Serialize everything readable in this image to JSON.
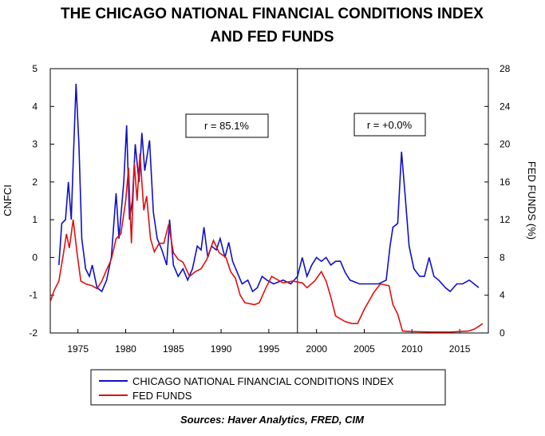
{
  "chart_data": {
    "type": "line",
    "title": [
      "THE CHICAGO NATIONAL FINANCIAL CONDITIONS INDEX",
      "AND FED FUNDS"
    ],
    "ylabel": "CNFCI",
    "y2label": "FED FUNDS (%)",
    "source": "Sources:  Haver Analytics, FRED, CIM",
    "annotations": [
      "r = 85.1%",
      "r = +0.0%"
    ],
    "vline": 1998,
    "xlim": [
      1972.1,
      2018
    ],
    "xticks": [
      1975,
      1980,
      1985,
      1990,
      1995,
      2000,
      2005,
      2010,
      2015
    ],
    "ylim": [
      -2,
      5
    ],
    "yticks": [
      -2,
      -1,
      0,
      1,
      2,
      3,
      4,
      5
    ],
    "y2lim": [
      0,
      28
    ],
    "y2ticks": [
      0,
      4,
      8,
      12,
      16,
      20,
      24,
      28
    ],
    "legend": "bottom",
    "series": [
      {
        "name": "CHICAGO NATIONAL FINANCIAL CONDITIONS INDEX",
        "color": "#1010c8",
        "axis": "y",
        "x": [
          1973.0,
          1973.3,
          1973.7,
          1974.0,
          1974.3,
          1974.5,
          1974.8,
          1975.1,
          1975.4,
          1975.8,
          1976.2,
          1976.5,
          1977.0,
          1977.5,
          1978.0,
          1978.5,
          1979.0,
          1979.3,
          1979.8,
          1980.1,
          1980.4,
          1980.7,
          1981.0,
          1981.4,
          1981.7,
          1982.0,
          1982.5,
          1982.9,
          1983.3,
          1983.8,
          1984.3,
          1984.6,
          1985.0,
          1985.5,
          1986.0,
          1986.5,
          1987.0,
          1987.5,
          1987.9,
          1988.2,
          1988.6,
          1989.0,
          1989.5,
          1989.9,
          1990.4,
          1990.8,
          1991.2,
          1991.7,
          1992.2,
          1992.8,
          1993.3,
          1993.8,
          1994.3,
          1994.8,
          1995.5,
          1996.5,
          1997.3,
          1998.0,
          1998.5,
          1999.0,
          1999.5,
          2000.0,
          2000.5,
          2001.0,
          2001.5,
          2002.0,
          2002.5,
          2003.0,
          2003.5,
          2004.5,
          2005.5,
          2006.5,
          2007.3,
          2007.7,
          2008.0,
          2008.5,
          2008.9,
          2009.3,
          2009.7,
          2010.2,
          2010.8,
          2011.3,
          2011.8,
          2012.3,
          2012.8,
          2013.5,
          2014.0,
          2014.7,
          2015.3,
          2016.0,
          2016.5,
          2017.0
        ],
        "values": [
          -0.2,
          0.9,
          1.0,
          2.0,
          1.0,
          2.5,
          4.6,
          3.0,
          0.5,
          -0.3,
          -0.5,
          -0.2,
          -0.8,
          -0.9,
          -0.6,
          0.0,
          1.7,
          0.5,
          2.0,
          3.5,
          1.0,
          1.5,
          3.0,
          2.0,
          3.3,
          2.3,
          3.1,
          1.2,
          0.5,
          0.2,
          -0.2,
          1.0,
          -0.2,
          -0.5,
          -0.3,
          -0.6,
          -0.3,
          0.3,
          0.2,
          0.8,
          0.0,
          0.3,
          0.2,
          0.5,
          0.0,
          0.4,
          -0.1,
          -0.4,
          -0.7,
          -0.6,
          -0.9,
          -0.8,
          -0.5,
          -0.6,
          -0.7,
          -0.6,
          -0.7,
          -0.5,
          0.0,
          -0.5,
          -0.2,
          0.0,
          -0.1,
          0.0,
          -0.2,
          -0.1,
          -0.1,
          -0.4,
          -0.6,
          -0.7,
          -0.7,
          -0.7,
          -0.6,
          0.3,
          0.8,
          0.9,
          2.8,
          1.6,
          0.3,
          -0.3,
          -0.5,
          -0.5,
          0.0,
          -0.5,
          -0.6,
          -0.8,
          -0.9,
          -0.7,
          -0.7,
          -0.6,
          -0.7,
          -0.8
        ]
      },
      {
        "name": "FED FUNDS",
        "color": "#e01010",
        "axis": "y2",
        "x": [
          1972.1,
          1972.5,
          1973.0,
          1973.5,
          1973.8,
          1974.1,
          1974.5,
          1974.9,
          1975.3,
          1975.8,
          1976.5,
          1977.0,
          1977.5,
          1978.0,
          1978.5,
          1979.0,
          1979.5,
          1980.0,
          1980.3,
          1980.6,
          1980.9,
          1981.2,
          1981.5,
          1981.9,
          1982.2,
          1982.6,
          1983.0,
          1983.5,
          1984.0,
          1984.5,
          1985.0,
          1985.5,
          1986.0,
          1986.7,
          1987.3,
          1987.9,
          1988.5,
          1989.2,
          1989.8,
          1990.5,
          1991.0,
          1991.5,
          1992.0,
          1992.5,
          1993.5,
          1994.0,
          1994.7,
          1995.3,
          1996.5,
          1997.5,
          1998.5,
          1999.0,
          1999.8,
          2000.5,
          2001.0,
          2001.5,
          2002.0,
          2003.0,
          2003.7,
          2004.3,
          2005.0,
          2006.0,
          2006.7,
          2007.6,
          2008.0,
          2008.5,
          2009.0,
          2010.0,
          2012.0,
          2014.0,
          2015.9,
          2016.5,
          2017.0,
          2017.4
        ],
        "values": [
          3.3,
          4.5,
          5.5,
          8.5,
          10.5,
          9.0,
          12.0,
          8.5,
          5.5,
          5.2,
          5.0,
          4.7,
          5.5,
          6.7,
          7.8,
          10.0,
          10.5,
          14.0,
          17.5,
          9.5,
          18.0,
          14.0,
          19.0,
          13.0,
          14.5,
          10.0,
          8.6,
          9.5,
          9.5,
          11.5,
          8.5,
          7.8,
          7.5,
          6.0,
          6.5,
          6.8,
          7.8,
          9.8,
          8.5,
          8.0,
          6.5,
          5.8,
          4.0,
          3.2,
          3.0,
          3.2,
          4.8,
          6.0,
          5.3,
          5.5,
          5.3,
          4.8,
          5.5,
          6.5,
          5.5,
          3.8,
          1.8,
          1.2,
          1.0,
          1.0,
          2.5,
          4.3,
          5.2,
          5.0,
          3.0,
          2.0,
          0.2,
          0.15,
          0.1,
          0.1,
          0.2,
          0.4,
          0.7,
          1.0
        ]
      }
    ]
  }
}
